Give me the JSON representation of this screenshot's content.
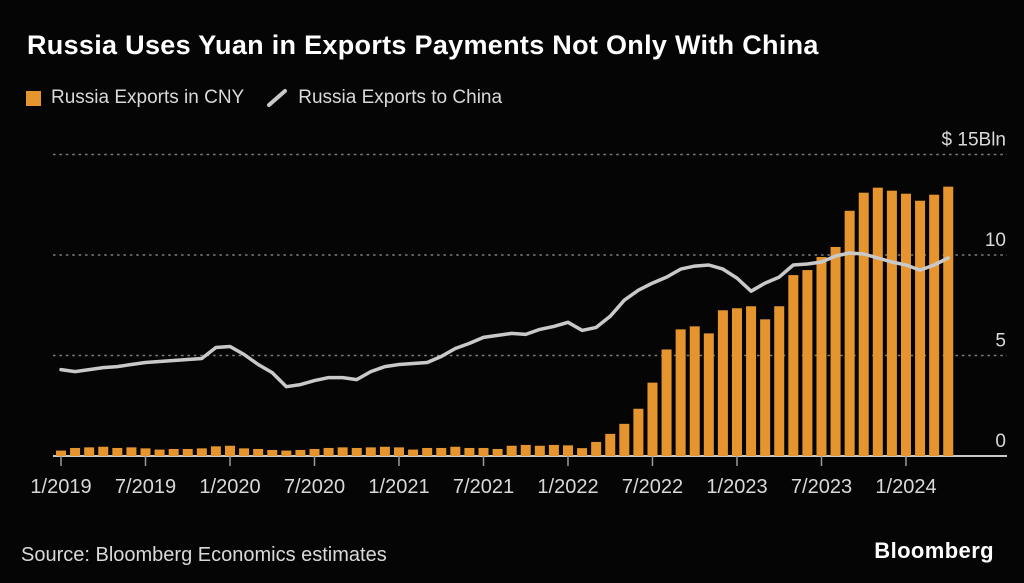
{
  "header": {
    "title": "Russia Uses Yuan in Exports Payments Not Only With China",
    "legend": [
      {
        "label": "Russia Exports in CNY",
        "swatch": "square"
      },
      {
        "label": "Russia Exports to China",
        "swatch": "line"
      }
    ]
  },
  "colors": {
    "background": "#050505",
    "bar_orange": "#E6952E",
    "line_gray": "#C9C9C9",
    "grid_gray": "#7A7A7A",
    "axis_text": "#D9D9D9",
    "baseline": "#C9C9C9",
    "tick": "#9A9A9A"
  },
  "chart_data": {
    "type": "bar",
    "title": "Russia Uses Yuan in Exports Payments Not Only With China",
    "unit_label": "$ 15Bln",
    "ylim": [
      0,
      15
    ],
    "yticks": [
      {
        "value": 0,
        "label": "0"
      },
      {
        "value": 5,
        "label": "5"
      },
      {
        "value": 10,
        "label": "10"
      },
      {
        "value": 15,
        "label": "$ 15Bln"
      }
    ],
    "x_ticks": [
      {
        "month_index": 0,
        "label": "1/2019"
      },
      {
        "month_index": 6,
        "label": "7/2019"
      },
      {
        "month_index": 12,
        "label": "1/2020"
      },
      {
        "month_index": 18,
        "label": "7/2020"
      },
      {
        "month_index": 24,
        "label": "1/2021"
      },
      {
        "month_index": 30,
        "label": "7/2021"
      },
      {
        "month_index": 36,
        "label": "1/2022"
      },
      {
        "month_index": 42,
        "label": "7/2022"
      },
      {
        "month_index": 48,
        "label": "1/2023"
      },
      {
        "month_index": 54,
        "label": "7/2023"
      },
      {
        "month_index": 60,
        "label": "1/2024"
      }
    ],
    "x": [
      "1/2019",
      "2/2019",
      "3/2019",
      "4/2019",
      "5/2019",
      "6/2019",
      "7/2019",
      "8/2019",
      "9/2019",
      "10/2019",
      "11/2019",
      "12/2019",
      "1/2020",
      "2/2020",
      "3/2020",
      "4/2020",
      "5/2020",
      "6/2020",
      "7/2020",
      "8/2020",
      "9/2020",
      "10/2020",
      "11/2020",
      "12/2020",
      "1/2021",
      "2/2021",
      "3/2021",
      "4/2021",
      "5/2021",
      "6/2021",
      "7/2021",
      "8/2021",
      "9/2021",
      "10/2021",
      "11/2021",
      "12/2021",
      "1/2022",
      "2/2022",
      "3/2022",
      "4/2022",
      "5/2022",
      "6/2022",
      "7/2022",
      "8/2022",
      "9/2022",
      "10/2022",
      "11/2022",
      "12/2022",
      "1/2023",
      "2/2023",
      "3/2023",
      "4/2023",
      "5/2023",
      "6/2023",
      "7/2023",
      "8/2023",
      "9/2023",
      "10/2023",
      "11/2023",
      "12/2023",
      "1/2024",
      "2/2024",
      "3/2024",
      "4/2024"
    ],
    "series": [
      {
        "name": "Russia Exports in CNY",
        "render": "bar",
        "color": "#E6952E",
        "values": [
          0.27,
          0.4,
          0.43,
          0.46,
          0.4,
          0.43,
          0.38,
          0.32,
          0.35,
          0.35,
          0.38,
          0.48,
          0.51,
          0.38,
          0.35,
          0.3,
          0.27,
          0.3,
          0.35,
          0.4,
          0.43,
          0.4,
          0.43,
          0.46,
          0.43,
          0.32,
          0.4,
          0.4,
          0.46,
          0.4,
          0.4,
          0.35,
          0.51,
          0.55,
          0.51,
          0.55,
          0.53,
          0.39,
          0.7,
          1.1,
          1.6,
          2.35,
          3.65,
          5.3,
          6.3,
          6.45,
          6.1,
          7.25,
          7.35,
          7.45,
          6.8,
          7.45,
          9.0,
          9.25,
          9.9,
          10.4,
          12.2,
          13.1,
          13.35,
          13.2,
          13.05,
          12.7,
          13.0,
          13.4
        ]
      },
      {
        "name": "Russia Exports to China",
        "render": "line",
        "color": "#C9C9C9",
        "values": [
          4.3,
          4.2,
          4.3,
          4.4,
          4.45,
          4.55,
          4.65,
          4.7,
          4.75,
          4.8,
          4.85,
          5.4,
          5.45,
          5.05,
          4.55,
          4.15,
          3.45,
          3.55,
          3.75,
          3.9,
          3.9,
          3.8,
          4.2,
          4.45,
          4.55,
          4.6,
          4.65,
          4.95,
          5.35,
          5.6,
          5.9,
          6.0,
          6.1,
          6.05,
          6.3,
          6.45,
          6.65,
          6.25,
          6.4,
          6.95,
          7.75,
          8.25,
          8.6,
          8.9,
          9.3,
          9.45,
          9.5,
          9.3,
          8.85,
          8.2,
          8.6,
          8.9,
          9.5,
          9.55,
          9.65,
          9.95,
          10.1,
          10.05,
          9.85,
          9.65,
          9.5,
          9.25,
          9.5,
          9.85
        ]
      }
    ],
    "grid": "horizontal dotted, zero baseline solid",
    "legend_position": "top-left"
  },
  "footer": {
    "source": "Source: Bloomberg Economics estimates",
    "logo": "Bloomberg"
  }
}
